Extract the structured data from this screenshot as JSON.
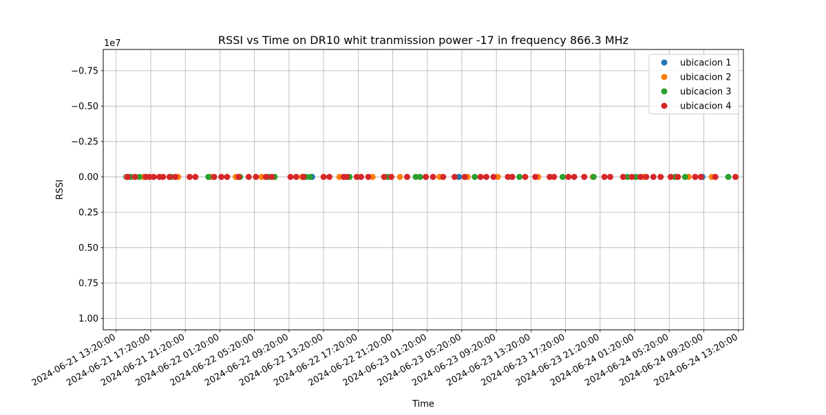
{
  "chart_data": {
    "type": "scatter",
    "title": "RSSI vs Time on DR10  whit tranmission power -17 in frequency 866.3 MHz",
    "xlabel": "Time",
    "ylabel": "RSSI",
    "y_offset_label": "1e7",
    "y_inverted": true,
    "ylim": [
      1.08,
      -0.9
    ],
    "y_ticks": [
      -0.75,
      -0.5,
      -0.25,
      0.0,
      0.25,
      0.5,
      0.75,
      1.0
    ],
    "y_tick_labels": [
      "−0.75",
      "−0.50",
      "−0.25",
      "0.00",
      "0.25",
      "0.50",
      "0.75",
      "1.00"
    ],
    "xlim": [
      "2024-06-21 11:50:00",
      "2024-06-24 13:55:00"
    ],
    "x_ticks": [
      "2024-06-21 13:20:00",
      "2024-06-21 17:20:00",
      "2024-06-21 21:20:00",
      "2024-06-22 01:20:00",
      "2024-06-22 05:20:00",
      "2024-06-22 09:20:00",
      "2024-06-22 13:20:00",
      "2024-06-22 17:20:00",
      "2024-06-22 21:20:00",
      "2024-06-23 01:20:00",
      "2024-06-23 05:20:00",
      "2024-06-23 09:20:00",
      "2024-06-23 13:20:00",
      "2024-06-23 17:20:00",
      "2024-06-23 21:20:00",
      "2024-06-24 01:20:00",
      "2024-06-24 05:20:00",
      "2024-06-24 09:20:00",
      "2024-06-24 13:20:00"
    ],
    "grid": true,
    "legend_position": "top-right",
    "series": [
      {
        "name": "ubicacion 1",
        "color": "#1f77b4",
        "x": [
          "2024-06-21 14:30:00",
          "2024-06-22 12:00:00",
          "2024-06-23 05:00:00",
          "2024-06-24 09:10:00"
        ],
        "y": [
          0,
          0,
          0,
          0
        ]
      },
      {
        "name": "ubicacion 2",
        "color": "#ff7f0e",
        "x": [
          "2024-06-21 14:35:00",
          "2024-06-21 16:30:00",
          "2024-06-21 20:30:00",
          "2024-06-22 00:15:00",
          "2024-06-22 03:10:00",
          "2024-06-22 06:10:00",
          "2024-06-22 10:50:00",
          "2024-06-22 15:10:00",
          "2024-06-22 19:00:00",
          "2024-06-22 22:10:00",
          "2024-06-23 02:45:00",
          "2024-06-23 06:00:00",
          "2024-06-23 09:30:00",
          "2024-06-23 14:10:00",
          "2024-06-23 20:30:00",
          "2024-06-24 02:20:00",
          "2024-06-24 07:35:00",
          "2024-06-24 10:15:00"
        ],
        "y": [
          0,
          0,
          0,
          0,
          0,
          0,
          0,
          0,
          0,
          0,
          0,
          0,
          0,
          0,
          0,
          0,
          0,
          0
        ]
      },
      {
        "name": "ubicacion 3",
        "color": "#2ca02c",
        "x": [
          "2024-06-21 15:00:00",
          "2024-06-21 16:00:00",
          "2024-06-21 19:40:00",
          "2024-06-22 00:00:00",
          "2024-06-22 03:40:00",
          "2024-06-22 07:00:00",
          "2024-06-22 07:40:00",
          "2024-06-22 11:15:00",
          "2024-06-22 11:45:00",
          "2024-06-22 16:20:00",
          "2024-06-22 20:45:00",
          "2024-06-23 00:00:00",
          "2024-06-23 00:30:00",
          "2024-06-23 06:50:00",
          "2024-06-23 12:00:00",
          "2024-06-23 17:00:00",
          "2024-06-23 20:35:00",
          "2024-06-24 00:30:00",
          "2024-06-24 01:30:00",
          "2024-06-24 06:00:00",
          "2024-06-24 07:10:00",
          "2024-06-24 12:10:00"
        ],
        "y": [
          0,
          0,
          0,
          0,
          0,
          0,
          0,
          0,
          0,
          0,
          0,
          0,
          0,
          0,
          0,
          0,
          0,
          0,
          0,
          0,
          0,
          0
        ]
      },
      {
        "name": "ubicacion 4",
        "color": "#d62728",
        "x": [
          "2024-06-21 14:40:00",
          "2024-06-21 15:30:00",
          "2024-06-21 16:45:00",
          "2024-06-21 17:10:00",
          "2024-06-21 17:40:00",
          "2024-06-21 18:20:00",
          "2024-06-21 18:45:00",
          "2024-06-21 19:30:00",
          "2024-06-21 20:10:00",
          "2024-06-21 21:50:00",
          "2024-06-21 22:30:00",
          "2024-06-22 00:40:00",
          "2024-06-22 01:30:00",
          "2024-06-22 02:10:00",
          "2024-06-22 03:30:00",
          "2024-06-22 04:40:00",
          "2024-06-22 05:30:00",
          "2024-06-22 06:40:00",
          "2024-06-22 07:20:00",
          "2024-06-22 09:30:00",
          "2024-06-22 10:10:00",
          "2024-06-22 11:00:00",
          "2024-06-22 13:20:00",
          "2024-06-22 14:00:00",
          "2024-06-22 15:40:00",
          "2024-06-22 16:00:00",
          "2024-06-22 17:10:00",
          "2024-06-22 17:40:00",
          "2024-06-22 18:30:00",
          "2024-06-22 20:20:00",
          "2024-06-22 21:10:00",
          "2024-06-22 23:00:00",
          "2024-06-23 01:10:00",
          "2024-06-23 02:00:00",
          "2024-06-23 03:10:00",
          "2024-06-23 04:30:00",
          "2024-06-23 05:40:00",
          "2024-06-23 07:30:00",
          "2024-06-23 08:10:00",
          "2024-06-23 09:00:00",
          "2024-06-23 10:40:00",
          "2024-06-23 11:10:00",
          "2024-06-23 12:40:00",
          "2024-06-23 13:50:00",
          "2024-06-23 15:30:00",
          "2024-06-23 16:00:00",
          "2024-06-23 17:40:00",
          "2024-06-23 18:20:00",
          "2024-06-23 19:30:00",
          "2024-06-23 21:50:00",
          "2024-06-23 22:30:00",
          "2024-06-24 00:00:00",
          "2024-06-24 01:00:00",
          "2024-06-24 02:00:00",
          "2024-06-24 02:40:00",
          "2024-06-24 03:30:00",
          "2024-06-24 04:20:00",
          "2024-06-24 05:30:00",
          "2024-06-24 06:20:00",
          "2024-06-24 08:20:00",
          "2024-06-24 09:00:00",
          "2024-06-24 10:40:00",
          "2024-06-24 13:00:00"
        ],
        "y": [
          0,
          0,
          0,
          0,
          0,
          0,
          0,
          0,
          0,
          0,
          0,
          0,
          0,
          0,
          0,
          0,
          0,
          0,
          0,
          0,
          0,
          0,
          0,
          0,
          0,
          0,
          0,
          0,
          0,
          0,
          0,
          0,
          0,
          0,
          0,
          0,
          0,
          0,
          0,
          0,
          0,
          0,
          0,
          0,
          0,
          0,
          0,
          0,
          0,
          0,
          0,
          0,
          0,
          0,
          0,
          0,
          0,
          0,
          0,
          0,
          0,
          0,
          0
        ]
      }
    ]
  }
}
